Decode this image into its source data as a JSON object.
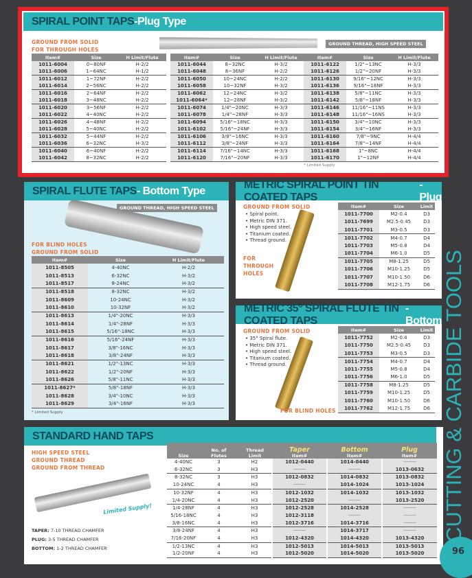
{
  "spiral_point": {
    "title": "SPIRAL POINT TAPS",
    "subtitle": "-Plug Type",
    "note1": "GROUND FROM SOLID",
    "note2": "FOR THROUGH HOLES",
    "tag": "GROUND THREAD, HIGH SPEED STEEL",
    "footnote": "* Limited Supply",
    "columns": [
      "Item#",
      "Size",
      "H Limit/Flute"
    ],
    "tables": [
      [
        [
          "1011-6004",
          "0~80NF",
          "H-2/2"
        ],
        [
          "1011-6006",
          "1~64NC",
          "H-1/2"
        ],
        [
          "1011-6012",
          "1~72NF",
          "H-2/2"
        ],
        [
          "1011-6014",
          "2~56NC",
          "H-2/2"
        ],
        [
          "1011-6016",
          "2~64NF",
          "H-2/2"
        ],
        [
          "1011-6018",
          "3~48NC",
          "H-2/2"
        ],
        [
          "1011-6020",
          "3~56NF",
          "H-2/2"
        ],
        [
          "1011-6022",
          "4~40NC",
          "H-2/2"
        ],
        [
          "1011-6026",
          "4~48NF",
          "H-2/2"
        ],
        [
          "1011-6028",
          "5~40NC",
          "H-2/2"
        ],
        [
          "1011-6032",
          "5~44NF",
          "H-2/2"
        ],
        [
          "1011-6036",
          "6~32NC",
          "H-3/2"
        ],
        [
          "1011-6040",
          "6~40NF",
          "H-2/2"
        ],
        [
          "1011-6042",
          "8~32NC",
          "H-2/2"
        ]
      ],
      [
        [
          "1011-6044",
          "8~32NC",
          "H-3/2"
        ],
        [
          "1011-6048",
          "8~36NF",
          "H-2/2"
        ],
        [
          "1011-6050",
          "10~24NC",
          "H-2/2"
        ],
        [
          "1011-6058",
          "10~32NF",
          "H-3/2"
        ],
        [
          "1011-6062",
          "12~24NC",
          "H-3/2"
        ],
        [
          "1011-6064*",
          "12~28NF",
          "H-3/2"
        ],
        [
          "1011-6074",
          "1/4\"~20NC",
          "H-3/3"
        ],
        [
          "1011-6078",
          "1/4\"~28NF",
          "H-3/3"
        ],
        [
          "1011-6094",
          "5/16\"~18NC",
          "H-3/3"
        ],
        [
          "1011-6102",
          "5/16\"~24NF",
          "H-3/3"
        ],
        [
          "1011-6106",
          "3/8\"~16NC",
          "H-3/3"
        ],
        [
          "1011-6112",
          "3/8\"~24NF",
          "H-3/3"
        ],
        [
          "1011-6114",
          "7/16\"~14NC",
          "H-3/3"
        ],
        [
          "1011-6120",
          "7/16\"~20NF",
          "H-3/3"
        ]
      ],
      [
        [
          "1011-6122",
          "1/2\"~13NC",
          "H-3/3"
        ],
        [
          "1011-6126",
          "1/2\"~20NF",
          "H-3/3"
        ],
        [
          "1011-6130",
          "9/16\"~12NC",
          "H-3/3"
        ],
        [
          "1011-6136",
          "9/16\"~18NF",
          "H-3/3"
        ],
        [
          "1011-6138",
          "5/8\"~11NC",
          "H-3/3"
        ],
        [
          "1011-6142",
          "5/8\"~18NF",
          "H-3/3"
        ],
        [
          "1011-6146",
          "11/16\"~11NS",
          "H-3/3"
        ],
        [
          "1011-6148",
          "11/16\"~16NS",
          "H-3/3"
        ],
        [
          "1011-6150",
          "3/4\"~10NC",
          "H-3/3"
        ],
        [
          "1011-6154",
          "3/4\"~16NF",
          "H-3/3"
        ],
        [
          "1011-6160",
          "7/8\"~9NC",
          "H-4/4"
        ],
        [
          "1011-6164",
          "7/8\"~14NF",
          "H-4/4"
        ],
        [
          "1011-6168",
          "1\"~8NC",
          "H-4/4"
        ],
        [
          "1011-6170",
          "1\"~12NF",
          "H-4/4"
        ]
      ]
    ]
  },
  "spiral_flute": {
    "title": "SPIRAL FLUTE TAPS",
    "subtitle": " - Bottom Type",
    "tag": "GROUND THREAD, HIGH SPEED STEEL",
    "note1": "FOR BLIND HOLES",
    "note2": "GROUND FROM SOLID",
    "footnote": "* Limited Supply",
    "columns": [
      "Item#",
      "Size",
      "H Limit/Flute"
    ],
    "rows": [
      [
        "1011-8505",
        "4-40NC",
        "H-2/2"
      ],
      [
        "1011-8513",
        "6-32NC",
        "H-3/2"
      ],
      [
        "1011-8517",
        "8-24NC",
        "H-3/2"
      ],
      [
        "1011-8518",
        "8-32NC",
        "H-3/2"
      ],
      [
        "1011-8609",
        "10-24NC",
        "H-3/2"
      ],
      [
        "1011-8610",
        "10-32NF",
        "H-3/2"
      ],
      [
        "1011-8613",
        "1/4\"-20NC",
        "H-3/3"
      ],
      [
        "1011-8614",
        "1/4\"-28NF",
        "H-3/3"
      ],
      [
        "1011-8615",
        "5/16\"-18NC",
        "H-3/3"
      ],
      [
        "1011-8616",
        "5/16\"-24NF",
        "H-3/3"
      ],
      [
        "1011-8617",
        "3/8\"-16NC",
        "H-3/3"
      ],
      [
        "1011-8618",
        "3/8\"-24NF",
        "H-3/3"
      ],
      [
        "1011-8621",
        "1/2\"-13NC",
        "H-3/3"
      ],
      [
        "1011-8622",
        "1/2\"-20NF",
        "H-3/3"
      ],
      [
        "1011-8626",
        "5/8\"-11NC",
        "H-3/3"
      ],
      [
        "1011-8627*",
        "5/8\"-18NF",
        "H-3/3"
      ],
      [
        "1011-8628",
        "3/4\"-10NC",
        "H-3/3"
      ],
      [
        "1011-8629",
        "3/4\"-16NF",
        "H-3/3"
      ]
    ]
  },
  "metric_plug": {
    "title": "METRIC SPIRAL POINT TIN COATED TAPS",
    "subtitle": "-Plug",
    "note": "GROUND FROM SOLID",
    "bullets": [
      "Spiral point.",
      "Metric DIN 371.",
      "High speed steel.",
      "Titanium coated.",
      "Thread ground."
    ],
    "note2": [
      "FOR",
      "THROUGH",
      "HOLES"
    ],
    "columns": [
      "Item#",
      "Size",
      "Limit"
    ],
    "rows": [
      [
        "1011-7700",
        "M2-0.4",
        "D3"
      ],
      [
        "1011-7699",
        "M2.5-0.45",
        "D3"
      ],
      [
        "1011-7701",
        "M3-0.5",
        "D3"
      ],
      [
        "1011-7702",
        "M4-0.7",
        "D4"
      ],
      [
        "1011-7703",
        "M5-0.8",
        "D4"
      ],
      [
        "1011-7704",
        "M6-1.0",
        "D5"
      ],
      [
        "1011-7705",
        "M8-1.25",
        "D5"
      ],
      [
        "1011-7706",
        "M10-1.25",
        "D5"
      ],
      [
        "1011-7707",
        "M10-1.50",
        "D6"
      ],
      [
        "1011-7708",
        "M12-1.75",
        "D6"
      ]
    ]
  },
  "metric_bottom": {
    "title": "METRIC 35° SPIRAL FLUTE TIN COATED TAPS",
    "subtitle": "-Bottom",
    "note": "GROUND FROM SOLID",
    "bullets": [
      "35° Spiral flute.",
      "Metric DIN 371.",
      "High speed steel.",
      "Titanium coated.",
      "Thread ground."
    ],
    "note2": "FOR BLIND HOLES",
    "columns": [
      "Item#",
      "Size",
      "Limit"
    ],
    "rows": [
      [
        "1011-7752",
        "M2-0.4",
        "D3"
      ],
      [
        "1011-7750",
        "M2.5-0.45",
        "D3"
      ],
      [
        "1011-7753",
        "M3-0.5",
        "D3"
      ],
      [
        "1011-7754",
        "M4-0.7",
        "D4"
      ],
      [
        "1011-7755",
        "M5-0.8",
        "D4"
      ],
      [
        "1011-7756",
        "M6-1.0",
        "D5"
      ],
      [
        "1011-7758",
        "M8-1.25",
        "D5"
      ],
      [
        "1011-7759",
        "M10-1.25",
        "D5"
      ],
      [
        "1011-7760",
        "M10-1.50",
        "D6"
      ],
      [
        "1011-7762",
        "M12-1.75",
        "D6"
      ]
    ]
  },
  "hand_taps": {
    "title": "STANDARD HAND TAPS",
    "notes": [
      "HIGH SPEED STEEL",
      "GROUND THREAD",
      "GROUND FROM THREAD"
    ],
    "stamp": "Limited Supply!",
    "chamfers": [
      {
        "k": "TAPER:",
        "v": "7-10 THREAD CHAMFER"
      },
      {
        "k": "PLUG:",
        "v": "3-5 THREAD CHAMFER"
      },
      {
        "k": "BOTTOM:",
        "v": "1-2 THREAD CHAMFER"
      }
    ],
    "columns": [
      {
        "top": "",
        "sub": "Size"
      },
      {
        "top": "No. of",
        "sub": "Flutes"
      },
      {
        "top": "Thread",
        "sub": "Limit"
      },
      {
        "top": "Taper",
        "sub": "Item#"
      },
      {
        "top": "Bottom",
        "sub": "Item#"
      },
      {
        "top": "Plug",
        "sub": "Item#"
      }
    ],
    "rows": [
      [
        "4-40NC",
        "3",
        "H2",
        "1012-0440",
        "1014-0440",
        "----------"
      ],
      [
        "6-32NC",
        "3",
        "H3",
        "----------",
        "----------",
        "1013-0632"
      ],
      [
        "8-32NC",
        "3",
        "H3",
        "1012-0832",
        "1014-0832",
        "1013-0832"
      ],
      [
        "10-24NC",
        "4",
        "H3",
        "----------",
        "1014-1024",
        "1013-1024"
      ],
      [
        "10-32NF",
        "4",
        "H3",
        "1012-1032",
        "1014-1032",
        "1013-1032"
      ],
      [
        "1/4-20NC",
        "4",
        "H3",
        "1012-2520",
        "----------",
        "1013-2520"
      ],
      [
        "1/4-28NF",
        "4",
        "H3",
        "1012-2528",
        "1014-2528",
        "----------"
      ],
      [
        "5/16-18NC",
        "4",
        "H3",
        "1012-3118",
        "----------",
        "----------"
      ],
      [
        "3/8-16NC",
        "4",
        "H3",
        "1012-3716",
        "1014-3716",
        "----------"
      ],
      [
        "3/8-24NF",
        "4",
        "H3",
        "----------",
        "1014-3717",
        "----------"
      ],
      [
        "7/16-20NF",
        "4",
        "H3",
        "1012-4320",
        "1014-4320",
        "1013-4320"
      ],
      [
        "1/2-13NC",
        "4",
        "H3",
        "1012-5013",
        "1014-5013",
        "1013-5013"
      ],
      [
        "1/2-20NF",
        "4",
        "H3",
        "1012-5020",
        "1014-5020",
        "1013-5020"
      ]
    ]
  },
  "side_title": "CUTTING & CARBIDE TOOLS",
  "page_number": "96",
  "colors": {
    "teal": "#2bb3b8",
    "red": "#e3232b",
    "orange": "#e8743b",
    "header_gray": "#8a8a8a"
  }
}
